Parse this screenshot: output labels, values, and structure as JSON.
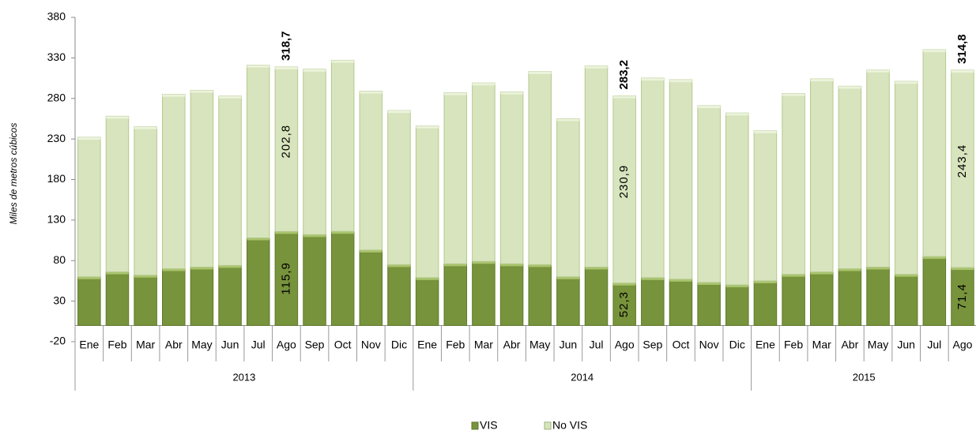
{
  "chart_data": {
    "type": "stacked_bar",
    "y_label": "Miles de metros cúbicos",
    "categories": [
      "Ene",
      "Feb",
      "Mar",
      "Abr",
      "May",
      "Jun",
      "Jul",
      "Ago",
      "Sep",
      "Oct",
      "Nov",
      "Dic",
      "Ene",
      "Feb",
      "Mar",
      "Abr",
      "May",
      "Jun",
      "Jul",
      "Ago",
      "Sep",
      "Oct",
      "Nov",
      "Dic",
      "Ene",
      "Feb",
      "Mar",
      "Abr",
      "May",
      "Jun",
      "Jul",
      "Ago"
    ],
    "year_labels": [
      "2013",
      "2014",
      "2015"
    ],
    "series": [
      {
        "name": "VIS",
        "color": "#77933c",
        "values": [
          60,
          66,
          62,
          70,
          72,
          74,
          108,
          115.9,
          112,
          116,
          93,
          75,
          59,
          76,
          79,
          76,
          75,
          60,
          72,
          52.3,
          59,
          57,
          53,
          50,
          55,
          63,
          66,
          70,
          72,
          63,
          85,
          71.4
        ],
        "value_labels": [
          null,
          null,
          null,
          null,
          null,
          null,
          null,
          "115,9",
          null,
          null,
          null,
          null,
          null,
          null,
          null,
          null,
          null,
          null,
          null,
          "52,3",
          null,
          null,
          null,
          null,
          null,
          null,
          null,
          null,
          null,
          null,
          null,
          "71,4"
        ]
      },
      {
        "name": "No VIS",
        "color": "#d7e4bd",
        "values": [
          172,
          192,
          183,
          215,
          218,
          209,
          213,
          202.8,
          204,
          211,
          196,
          190,
          187,
          211,
          220,
          212,
          238,
          195,
          248,
          230.9,
          246,
          246,
          218,
          212,
          185,
          223,
          238,
          225,
          243,
          238,
          255,
          243.4
        ],
        "value_labels": [
          null,
          null,
          null,
          null,
          null,
          null,
          null,
          "202,8",
          null,
          null,
          null,
          null,
          null,
          null,
          null,
          null,
          null,
          null,
          null,
          "230,9",
          null,
          null,
          null,
          null,
          null,
          null,
          null,
          null,
          null,
          null,
          null,
          "243,4"
        ]
      }
    ],
    "totals": [
      null,
      null,
      null,
      null,
      null,
      null,
      null,
      318.7,
      null,
      null,
      null,
      null,
      null,
      null,
      null,
      null,
      null,
      null,
      null,
      283.2,
      null,
      null,
      null,
      null,
      null,
      null,
      null,
      null,
      null,
      null,
      null,
      314.8
    ],
    "total_labels": [
      null,
      null,
      null,
      null,
      null,
      null,
      null,
      "318,7",
      null,
      null,
      null,
      null,
      null,
      null,
      null,
      null,
      null,
      null,
      null,
      "283,2",
      null,
      null,
      null,
      null,
      null,
      null,
      null,
      null,
      null,
      null,
      null,
      "314,8"
    ],
    "ylim": [
      -20,
      380
    ],
    "yticks": [
      -20,
      30,
      80,
      130,
      180,
      230,
      280,
      330,
      380
    ],
    "legend": "bottom"
  }
}
